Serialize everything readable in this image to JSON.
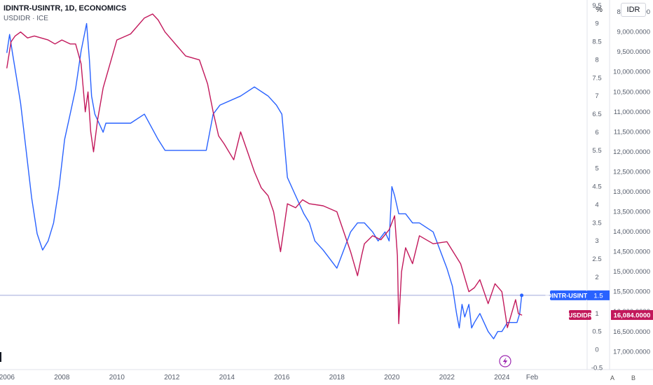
{
  "header": {
    "title": "IDINTR-USINTR, 1D, ECONOMICS",
    "subtitle": "USDIDR · ICE"
  },
  "units": {
    "left": "%",
    "right": "IDR"
  },
  "corner": {
    "a": "A",
    "b": "B"
  },
  "colors": {
    "spread": "#2962ff",
    "usdidr": "#c2185b",
    "grid": "#e0e3eb",
    "axis_text": "#555c6a",
    "crosshair": "#9fa8da"
  },
  "chart_data": {
    "type": "line",
    "x_axis": {
      "ticks": [
        "2006",
        "2008",
        "2010",
        "2012",
        "2014",
        "2016",
        "2018",
        "2020",
        "2022",
        "2024",
        "Feb"
      ],
      "range": [
        2005.75,
        2027.1
      ]
    },
    "y_left": {
      "unit": "%",
      "range": [
        -0.55,
        9.65
      ],
      "ticks": [
        "9.5",
        "9",
        "8.5",
        "8",
        "7.5",
        "7",
        "6.5",
        "6",
        "5.5",
        "5",
        "4.5",
        "4",
        "3.5",
        "3",
        "2.5",
        "2",
        "1.5",
        "1",
        "0.5",
        "0",
        "-0.5"
      ]
    },
    "y_right": {
      "unit": "IDR",
      "inverted": true,
      "range": [
        8200,
        17450
      ],
      "ticks": [
        "8,500.0000",
        "9,000.0000",
        "9,500.0000",
        "10,000.0000",
        "10,500.0000",
        "11,000.0000",
        "11,500.0000",
        "12,000.0000",
        "12,500.0000",
        "13,000.0000",
        "13,500.0000",
        "14,000.0000",
        "14,500.0000",
        "15,000.0000",
        "15,500.0000",
        "16,000.0000",
        "16,500.0000",
        "17,000.0000"
      ]
    },
    "series": [
      {
        "name": "IDINTR-USINTR",
        "axis": "left",
        "last_label": "1.5",
        "last_value": 1.5,
        "x": [
          2006.0,
          2006.1,
          2006.2,
          2006.35,
          2006.5,
          2006.7,
          2006.9,
          2007.1,
          2007.3,
          2007.5,
          2007.6,
          2007.7,
          2007.9,
          2008.1,
          2008.3,
          2008.5,
          2008.7,
          2008.9,
          2009.0,
          2009.08,
          2009.2,
          2009.35,
          2009.5,
          2009.6,
          2009.9,
          2010.5,
          2011.0,
          2011.5,
          2011.75,
          2012.0,
          2012.5,
          2013.0,
          2013.25,
          2013.5,
          2013.75,
          2014.5,
          2015.0,
          2015.5,
          2015.8,
          2016.0,
          2016.2,
          2016.5,
          2016.8,
          2017.0,
          2017.2,
          2017.5,
          2017.75,
          2018.0,
          2018.25,
          2018.5,
          2018.75,
          2019.0,
          2019.3,
          2019.5,
          2019.75,
          2019.9,
          2020.0,
          2020.1,
          2020.25,
          2020.5,
          2020.75,
          2021.0,
          2021.5,
          2022.0,
          2022.2,
          2022.35,
          2022.45,
          2022.55,
          2022.65,
          2022.8,
          2022.9,
          2023.0,
          2023.2,
          2023.5,
          2023.7,
          2023.85,
          2024.0,
          2024.2,
          2024.4,
          2024.55,
          2024.65,
          2024.72
        ],
        "y": [
          8.2,
          8.7,
          8.2,
          7.5,
          6.8,
          5.5,
          4.2,
          3.2,
          2.75,
          3.0,
          3.25,
          3.5,
          4.5,
          5.8,
          6.5,
          7.2,
          8.25,
          9.0,
          8.0,
          7.0,
          6.5,
          6.25,
          6.0,
          6.25,
          6.25,
          6.25,
          6.5,
          5.8,
          5.5,
          5.5,
          5.5,
          5.5,
          5.5,
          6.5,
          6.75,
          7.0,
          7.25,
          7.0,
          6.75,
          6.5,
          4.75,
          4.25,
          3.75,
          3.5,
          3.0,
          2.75,
          2.5,
          2.25,
          2.75,
          3.25,
          3.5,
          3.5,
          3.25,
          3.0,
          3.25,
          3.0,
          4.5,
          4.25,
          3.75,
          3.75,
          3.5,
          3.5,
          3.25,
          2.25,
          1.75,
          1.0,
          0.6,
          1.25,
          0.9,
          1.25,
          0.6,
          0.75,
          1.0,
          0.5,
          0.3,
          0.5,
          0.5,
          0.75,
          0.75,
          0.75,
          1.0,
          1.5
        ]
      },
      {
        "name": "USDIDR",
        "axis": "right",
        "last_label": "16,084.0000",
        "last_value": 16084,
        "x": [
          2006.0,
          2006.15,
          2006.3,
          2006.5,
          2006.75,
          2007.0,
          2007.5,
          2007.75,
          2008.0,
          2008.3,
          2008.5,
          2008.7,
          2008.85,
          2008.95,
          2009.05,
          2009.15,
          2009.3,
          2009.5,
          2009.75,
          2010.0,
          2010.5,
          2011.0,
          2011.3,
          2011.5,
          2011.75,
          2012.0,
          2012.5,
          2013.0,
          2013.3,
          2013.5,
          2013.7,
          2013.9,
          2014.25,
          2014.5,
          2014.75,
          2015.0,
          2015.25,
          2015.5,
          2015.7,
          2015.85,
          2015.95,
          2016.2,
          2016.5,
          2016.75,
          2017.0,
          2017.5,
          2018.0,
          2018.25,
          2018.5,
          2018.75,
          2018.9,
          2019.0,
          2019.3,
          2019.6,
          2019.9,
          2020.1,
          2020.2,
          2020.25,
          2020.35,
          2020.5,
          2020.75,
          2021.0,
          2021.5,
          2022.0,
          2022.5,
          2022.8,
          2023.0,
          2023.2,
          2023.5,
          2023.75,
          2024.0,
          2024.2,
          2024.35,
          2024.5,
          2024.6,
          2024.72
        ],
        "y": [
          9900,
          9250,
          9100,
          9000,
          9150,
          9100,
          9200,
          9300,
          9200,
          9300,
          9300,
          9800,
          11000,
          10500,
          11500,
          12000,
          11200,
          10400,
          9800,
          9200,
          9050,
          8650,
          8550,
          8700,
          9000,
          9200,
          9600,
          9700,
          10300,
          11000,
          11600,
          11800,
          12200,
          11500,
          12000,
          12500,
          12900,
          13100,
          13500,
          14100,
          14500,
          13300,
          13400,
          13200,
          13300,
          13350,
          13500,
          14000,
          14500,
          15100,
          14600,
          14300,
          14100,
          14200,
          13950,
          13600,
          14600,
          16300,
          15000,
          14400,
          14800,
          14100,
          14300,
          14250,
          14800,
          15500,
          15400,
          15200,
          15800,
          15300,
          15500,
          16400,
          16050,
          15700,
          16050,
          16084
        ]
      }
    ]
  }
}
